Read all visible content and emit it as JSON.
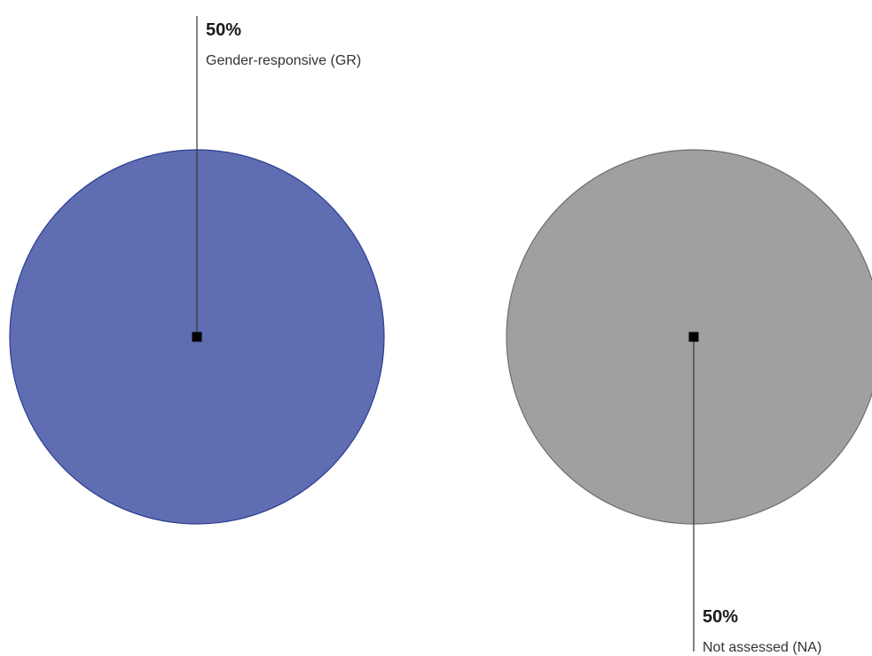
{
  "chart_data": {
    "type": "pie",
    "slices": [
      {
        "label": "Gender-responsive (GR)",
        "value": 50,
        "value_label": "50%",
        "color": "#5f6db2",
        "stroke": "#2e3d8f"
      },
      {
        "label": "Not assessed (NA)",
        "value": 50,
        "value_label": "50%",
        "color": "#a0a0a1",
        "stroke": "#6d6d6d"
      }
    ],
    "title": "",
    "legend": "none",
    "label_style": "callout-leader-lines"
  }
}
